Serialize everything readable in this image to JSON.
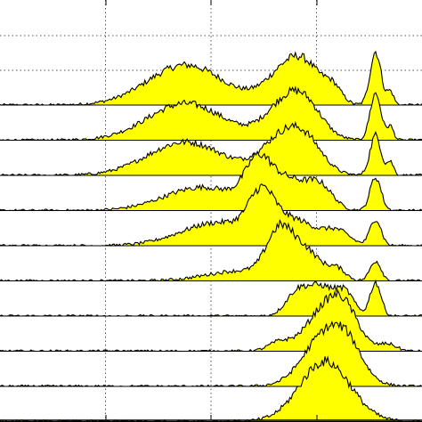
{
  "chart_data": {
    "type": "area",
    "title": "",
    "xlabel": "",
    "ylabel": "",
    "style": {
      "fill_color": "#ffff00",
      "line_color": "#000000",
      "grid": "dotted",
      "grid_color": "#555555",
      "background": "#ffffff"
    },
    "x_range": [
      0,
      100
    ],
    "x_gridlines": [
      25,
      50,
      75
    ],
    "series": [
      {
        "baseline_amplitude": 0.02,
        "peaks": [
          {
            "x": 44,
            "width": 9,
            "height": 0.6
          },
          {
            "x": 68,
            "width": 5,
            "height": 0.5
          },
          {
            "x": 73,
            "width": 4,
            "height": 0.35
          },
          {
            "x": 79,
            "width": 2,
            "height": 0.2
          },
          {
            "x": 89,
            "width": 1.3,
            "height": 0.8
          },
          {
            "x": 92.5,
            "width": 0.8,
            "height": 0.2
          }
        ]
      },
      {
        "baseline_amplitude": 0.02,
        "peaks": [
          {
            "x": 44,
            "width": 9,
            "height": 0.55
          },
          {
            "x": 68,
            "width": 5,
            "height": 0.55
          },
          {
            "x": 73,
            "width": 4,
            "height": 0.3
          },
          {
            "x": 89,
            "width": 1.3,
            "height": 0.7
          },
          {
            "x": 92.5,
            "width": 0.8,
            "height": 0.2
          }
        ]
      },
      {
        "baseline_amplitude": 0.02,
        "peaks": [
          {
            "x": 44,
            "width": 9,
            "height": 0.5
          },
          {
            "x": 67,
            "width": 5,
            "height": 0.55
          },
          {
            "x": 73,
            "width": 4,
            "height": 0.35
          },
          {
            "x": 89,
            "width": 1.3,
            "height": 0.6
          },
          {
            "x": 92.5,
            "width": 0.8,
            "height": 0.2
          }
        ]
      },
      {
        "baseline_amplitude": 0.02,
        "peaks": [
          {
            "x": 48,
            "width": 9,
            "height": 0.35
          },
          {
            "x": 61,
            "width": 3,
            "height": 0.55
          },
          {
            "x": 68,
            "width": 5,
            "height": 0.45
          },
          {
            "x": 76,
            "width": 3,
            "height": 0.3
          },
          {
            "x": 89,
            "width": 1.3,
            "height": 0.5
          }
        ]
      },
      {
        "baseline_amplitude": 0.02,
        "peaks": [
          {
            "x": 52,
            "width": 9,
            "height": 0.35
          },
          {
            "x": 62,
            "width": 3,
            "height": 0.6
          },
          {
            "x": 70,
            "width": 5,
            "height": 0.35
          },
          {
            "x": 80,
            "width": 3,
            "height": 0.2
          },
          {
            "x": 89,
            "width": 1.3,
            "height": 0.4
          }
        ]
      },
      {
        "baseline_amplitude": 0.02,
        "peaks": [
          {
            "x": 57,
            "width": 8,
            "height": 0.15
          },
          {
            "x": 66,
            "width": 3,
            "height": 0.6
          },
          {
            "x": 72,
            "width": 4,
            "height": 0.45
          },
          {
            "x": 80,
            "width": 2,
            "height": 0.15
          },
          {
            "x": 89,
            "width": 1.3,
            "height": 0.3
          }
        ]
      },
      {
        "baseline_amplitude": 0.02,
        "peaks": [
          {
            "x": 70,
            "width": 2.5,
            "height": 0.25
          },
          {
            "x": 76,
            "width": 4,
            "height": 0.45
          },
          {
            "x": 82,
            "width": 2,
            "height": 0.25
          },
          {
            "x": 89,
            "width": 1.3,
            "height": 0.5
          }
        ]
      },
      {
        "baseline_amplitude": 0.02,
        "peaks": [
          {
            "x": 66,
            "width": 2.5,
            "height": 0.12
          },
          {
            "x": 78,
            "width": 5,
            "height": 0.7
          },
          {
            "x": 82,
            "width": 3,
            "height": 0.25
          },
          {
            "x": 92,
            "width": 2,
            "height": 0.1
          }
        ]
      },
      {
        "baseline_amplitude": 0.02,
        "peaks": [
          {
            "x": 78,
            "width": 5.5,
            "height": 0.85
          },
          {
            "x": 83,
            "width": 3,
            "height": 0.2
          }
        ]
      },
      {
        "baseline_amplitude": 0.025,
        "peaks": [
          {
            "x": 77,
            "width": 6,
            "height": 0.9
          }
        ]
      }
    ]
  }
}
